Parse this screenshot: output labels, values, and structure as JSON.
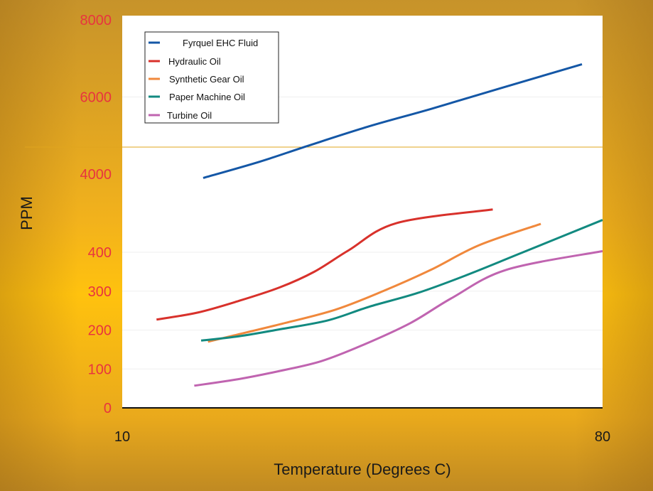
{
  "chart_data": {
    "type": "line",
    "title": "",
    "xlabel": "Temperature (Degrees C)",
    "ylabel": "PPM",
    "x_ticks": [
      "10",
      "80"
    ],
    "y_ticks": [
      "0",
      "100",
      "200",
      "300",
      "400",
      "4000",
      "6000",
      "8000"
    ],
    "x_range": [
      10,
      80
    ],
    "axis_note": "broken y-axis: linear 0-400 below, 4000-8000 above",
    "grid": true,
    "legend_position": "top-left",
    "colors": {
      "Fyrquel EHC Fluid": "#1457a6",
      "Hydraulic Oil": "#d8312b",
      "Synthetic Gear Oil": "#f0883c",
      "Paper Machine Oil": "#128a80",
      "Turbine Oil": "#c064b0"
    },
    "series": [
      {
        "name": "Fyrquel EHC Fluid",
        "points": [
          [
            21.8,
            3900
          ],
          [
            30,
            4320
          ],
          [
            37,
            4730
          ],
          [
            46,
            5240
          ],
          [
            55,
            5690
          ],
          [
            65,
            6220
          ],
          [
            77,
            6850
          ]
        ]
      },
      {
        "name": "Hydraulic Oil",
        "points": [
          [
            15,
            227
          ],
          [
            21,
            245
          ],
          [
            27,
            275
          ],
          [
            33,
            310
          ],
          [
            38,
            350
          ],
          [
            43,
            405
          ],
          [
            50,
            475
          ],
          [
            64,
            510
          ]
        ]
      },
      {
        "name": "Synthetic Gear Oil",
        "points": [
          [
            22.5,
            170
          ],
          [
            26,
            185
          ],
          [
            33,
            215
          ],
          [
            41,
            252
          ],
          [
            48,
            300
          ],
          [
            55,
            355
          ],
          [
            62,
            418
          ],
          [
            71,
            473
          ]
        ]
      },
      {
        "name": "Paper Machine Oil",
        "points": [
          [
            21.5,
            173
          ],
          [
            27,
            184
          ],
          [
            33,
            202
          ],
          [
            40,
            225
          ],
          [
            46,
            260
          ],
          [
            53,
            295
          ],
          [
            60,
            340
          ],
          [
            68,
            397
          ],
          [
            80,
            483
          ]
        ]
      },
      {
        "name": "Turbine Oil",
        "points": [
          [
            20.5,
            57
          ],
          [
            27,
            74
          ],
          [
            33,
            95
          ],
          [
            39,
            120
          ],
          [
            45,
            161
          ],
          [
            52,
            218
          ],
          [
            58,
            282
          ],
          [
            66,
            355
          ],
          [
            80,
            403
          ]
        ]
      }
    ]
  }
}
